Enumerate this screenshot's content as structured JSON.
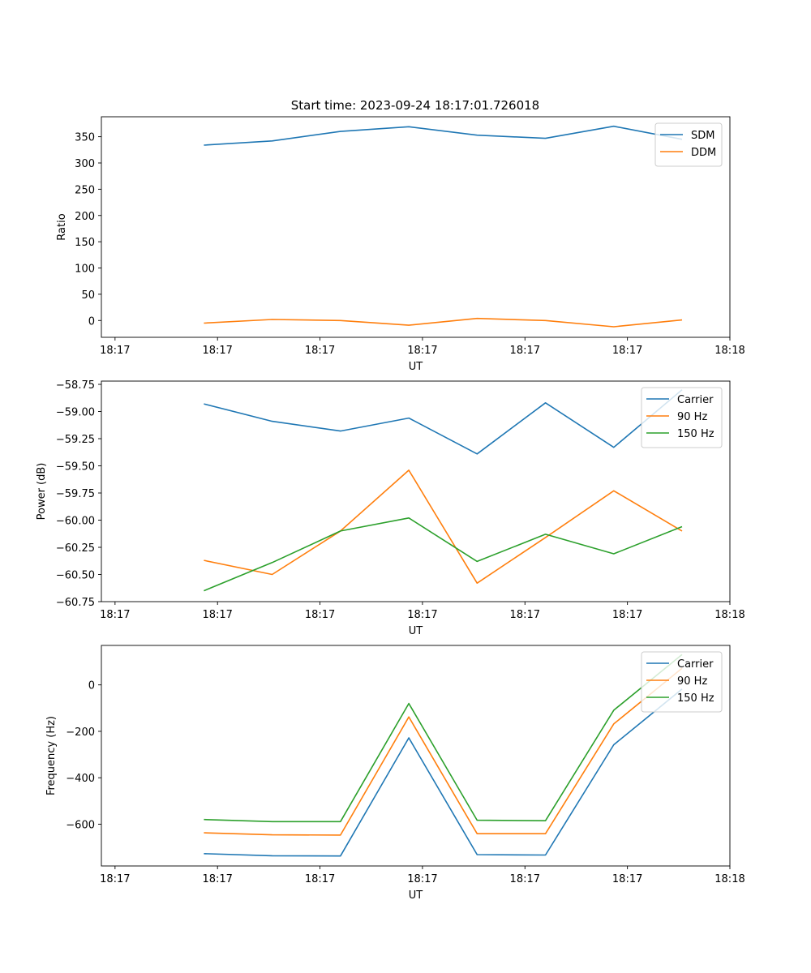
{
  "figure_title": "Start time: 2023-09-24 18:17:01.726018",
  "chart_data": [
    {
      "type": "line",
      "xlabel": "UT",
      "ylabel": "Ratio",
      "x": [
        0.75,
        1.25,
        1.75,
        2.25,
        2.75,
        3.25,
        3.75,
        4.25
      ],
      "xlim": [
        0,
        4.6
      ],
      "xticks": [
        0.0,
        0.75,
        1.5,
        2.25,
        3.0,
        3.75,
        4.5
      ],
      "xtick_positions": [
        0.1,
        0.85,
        1.6,
        2.35,
        3.1,
        3.85,
        4.6
      ],
      "xtick_labels": [
        "18:17",
        "18:17",
        "18:17",
        "18:17",
        "18:17",
        "18:17",
        "18:18"
      ],
      "ylim": [
        -32,
        388
      ],
      "yticks": [
        0,
        50,
        100,
        150,
        200,
        250,
        300,
        350
      ],
      "ytick_labels": [
        "0",
        "50",
        "100",
        "150",
        "200",
        "250",
        "300",
        "350"
      ],
      "legend": "top-right",
      "series": [
        {
          "name": "SDM",
          "color": "#1f77b4",
          "values": [
            334,
            342,
            360,
            369,
            353,
            347,
            370,
            345
          ]
        },
        {
          "name": "DDM",
          "color": "#ff7f0e",
          "values": [
            -5,
            2,
            0,
            -9,
            4,
            0,
            -12,
            1
          ]
        }
      ]
    },
    {
      "type": "line",
      "xlabel": "UT",
      "ylabel": "Power (dB)",
      "x": [
        0.75,
        1.25,
        1.75,
        2.25,
        2.75,
        3.25,
        3.75,
        4.25
      ],
      "xlim": [
        0,
        4.6
      ],
      "xtick_positions": [
        0.1,
        0.85,
        1.6,
        2.35,
        3.1,
        3.85,
        4.6
      ],
      "xtick_labels": [
        "18:17",
        "18:17",
        "18:17",
        "18:17",
        "18:17",
        "18:17",
        "18:18"
      ],
      "ylim": [
        -60.75,
        -58.72
      ],
      "yticks": [
        -60.75,
        -60.5,
        -60.25,
        -60.0,
        -59.75,
        -59.5,
        -59.25,
        -59.0,
        -58.75
      ],
      "ytick_labels": [
        "−60.75",
        "−60.50",
        "−60.25",
        "−60.00",
        "−59.75",
        "−59.50",
        "−59.25",
        "−59.00",
        "−58.75"
      ],
      "legend": "top-right",
      "series": [
        {
          "name": "Carrier",
          "color": "#1f77b4",
          "values": [
            -58.93,
            -59.09,
            -59.18,
            -59.06,
            -59.39,
            -58.92,
            -59.33,
            -58.8
          ]
        },
        {
          "name": "90 Hz",
          "color": "#ff7f0e",
          "values": [
            -60.37,
            -60.5,
            -60.1,
            -59.54,
            -60.58,
            -60.16,
            -59.73,
            -60.1
          ]
        },
        {
          "name": "150 Hz",
          "color": "#2ca02c",
          "values": [
            -60.65,
            -60.39,
            -60.1,
            -59.98,
            -60.38,
            -60.13,
            -60.31,
            -60.06
          ]
        }
      ]
    },
    {
      "type": "line",
      "xlabel": "UT",
      "ylabel": "Frequency (Hz)",
      "x": [
        0.75,
        1.25,
        1.75,
        2.25,
        2.75,
        3.25,
        3.75,
        4.25
      ],
      "xlim": [
        0,
        4.6
      ],
      "xtick_positions": [
        0.1,
        0.85,
        1.6,
        2.35,
        3.1,
        3.85,
        4.6
      ],
      "xtick_labels": [
        "18:17",
        "18:17",
        "18:17",
        "18:17",
        "18:17",
        "18:17",
        "18:18"
      ],
      "ylim": [
        -780,
        170
      ],
      "yticks": [
        -600,
        -400,
        -200,
        0
      ],
      "ytick_labels": [
        "−600",
        "−400",
        "−200",
        "0"
      ],
      "legend": "top-right",
      "series": [
        {
          "name": "Carrier",
          "color": "#1f77b4",
          "values": [
            -727,
            -736,
            -737,
            -228,
            -731,
            -733,
            -258,
            -18
          ]
        },
        {
          "name": "90 Hz",
          "color": "#ff7f0e",
          "values": [
            -637,
            -646,
            -647,
            -138,
            -641,
            -641,
            -168,
            72
          ]
        },
        {
          "name": "150 Hz",
          "color": "#2ca02c",
          "values": [
            -580,
            -589,
            -589,
            -80,
            -583,
            -585,
            -109,
            131
          ]
        }
      ]
    }
  ]
}
